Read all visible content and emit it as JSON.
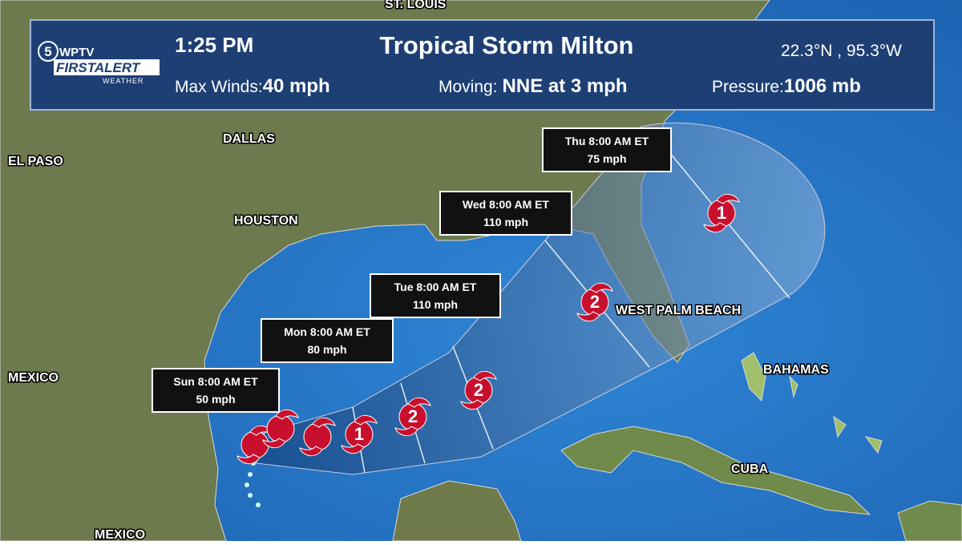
{
  "header": {
    "logo": {
      "channel": "5",
      "station": "WPTV",
      "brand": "FIRSTALERT",
      "sub": "WEATHER"
    },
    "time": "1:25 PM",
    "title": "Tropical Storm Milton",
    "position": "22.3°N , 95.3°W",
    "stats": [
      {
        "label": "Max Winds:",
        "value": "40 mph"
      },
      {
        "label": "Moving:",
        "value": "NNE at 3 mph"
      },
      {
        "label": "Pressure:",
        "value": "1006 mb"
      }
    ]
  },
  "map_labels": [
    "ST. LOUIS",
    "DALLAS",
    "EL PASO",
    "HOUSTON",
    "MEXICO",
    "MEXICO",
    "WEST PALM BEACH",
    "BAHAMAS",
    "CUBA"
  ],
  "forecast_points": [
    {
      "time": "Sun 8:00 AM ET",
      "wind": "50 mph"
    },
    {
      "time": "Mon 8:00 AM ET",
      "wind": "80 mph"
    },
    {
      "time": "Tue 8:00 AM ET",
      "wind": "110 mph"
    },
    {
      "time": "Wed 8:00 AM ET",
      "wind": "110 mph"
    },
    {
      "time": "Thu 8:00 AM ET",
      "wind": "75 mph"
    }
  ],
  "storm_categories": [
    1,
    2,
    2,
    2,
    1
  ]
}
